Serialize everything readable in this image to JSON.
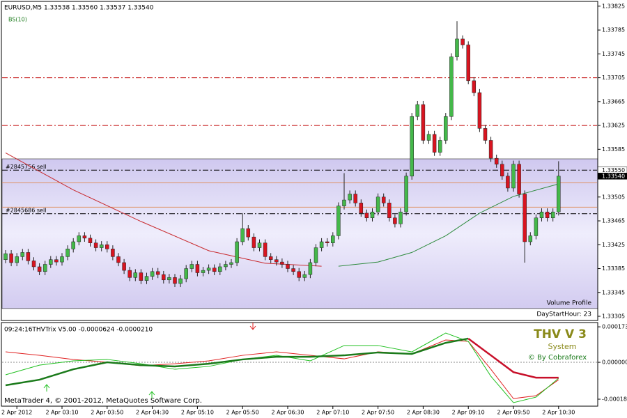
{
  "chart_data": [
    {
      "type": "candlestick",
      "title": "EURUSD,M5 1.33538 1.33560 1.33537 1.33540",
      "indicator_label": "BS(10)",
      "categories": [
        null,
        null,
        "2 Apr 2012",
        null,
        null,
        null,
        null,
        null,
        null,
        null,
        "2 Apr 03:10",
        null,
        null,
        null,
        null,
        null,
        null,
        null,
        "2 Apr 03:50",
        null,
        null,
        null,
        null,
        null,
        null,
        null,
        "2 Apr 04:30",
        null,
        null,
        null,
        null,
        null,
        null,
        null,
        "2 Apr 05:10",
        null,
        null,
        null,
        null,
        null,
        null,
        null,
        "2 Apr 05:50",
        null,
        null,
        null,
        null,
        null,
        null,
        null,
        "2 Apr 06:30",
        null,
        null,
        null,
        null,
        null,
        null,
        null,
        "2 Apr 07:10",
        null,
        null,
        null,
        null,
        null,
        null,
        null,
        "2 Apr 07:50",
        null,
        null,
        null,
        null,
        null,
        null,
        null,
        "2 Apr 08:30",
        null,
        null,
        null,
        null,
        null,
        null,
        null,
        "2 Apr 09:10",
        null,
        null,
        null,
        null,
        null,
        null,
        null,
        "2 Apr 09:50",
        null,
        null,
        null,
        null,
        null,
        null,
        null,
        "2 Apr 10:30"
      ],
      "open": [
        1.334,
        1.3341,
        1.33395,
        1.33405,
        1.33412,
        1.33398,
        1.33388,
        1.3338,
        1.33392,
        1.334,
        1.33396,
        1.33405,
        1.33418,
        1.3343,
        1.3344,
        1.33436,
        1.33428,
        1.3342,
        1.33425,
        1.33418,
        1.33405,
        1.33395,
        1.33382,
        1.3337,
        1.33378,
        1.33365,
        1.33372,
        1.3338,
        1.33375,
        1.33366,
        1.3337,
        1.3336,
        1.33368,
        1.33385,
        1.33392,
        1.33378,
        1.33382,
        1.33386,
        1.3338,
        1.33388,
        1.33392,
        1.33395,
        1.3343,
        1.33452,
        1.33438,
        1.3342,
        1.33428,
        1.33405,
        1.334,
        1.33396,
        1.33392,
        1.33385,
        1.3338,
        1.3337,
        1.33375,
        1.33395,
        1.3342,
        1.3343,
        1.33428,
        1.3344,
        1.3349,
        1.335,
        1.3351,
        1.33495,
        1.33478,
        1.3347,
        1.3348,
        1.33505,
        1.33495,
        1.3347,
        1.3346,
        1.3348,
        1.3354,
        1.3364,
        1.3366,
        1.336,
        1.3361,
        1.3358,
        1.336,
        1.3364,
        1.3374,
        1.3377,
        1.3376,
        1.337,
        1.3368,
        1.3362,
        1.336,
        1.3357,
        1.3356,
        1.3354,
        1.3352,
        1.3356,
        1.3351,
        1.3343,
        1.3344,
        1.3347,
        1.3348,
        1.3347,
        1.3348
      ],
      "high": [
        1.33416,
        1.33416,
        1.33411,
        1.33418,
        1.33418,
        1.33404,
        1.33394,
        1.33398,
        1.33406,
        1.33406,
        1.33411,
        1.33424,
        1.33436,
        1.33446,
        1.33446,
        1.33442,
        1.33434,
        1.33431,
        1.33431,
        1.33424,
        1.33411,
        1.33401,
        1.33388,
        1.33384,
        1.33384,
        1.33378,
        1.33386,
        1.33386,
        1.33381,
        1.33376,
        1.33376,
        1.33374,
        1.33391,
        1.33398,
        1.33398,
        1.33388,
        1.33392,
        1.33392,
        1.33394,
        1.33398,
        1.33401,
        1.33436,
        1.33478,
        1.33458,
        1.33444,
        1.33434,
        1.33434,
        1.33411,
        1.33406,
        1.33402,
        1.33398,
        1.33391,
        1.33386,
        1.33381,
        1.33401,
        1.33426,
        1.33436,
        1.33436,
        1.33446,
        1.33496,
        1.33545,
        1.33516,
        1.33516,
        1.33501,
        1.33484,
        1.33486,
        1.33511,
        1.33511,
        1.33501,
        1.33476,
        1.33486,
        1.33546,
        1.33646,
        1.33666,
        1.33666,
        1.33616,
        1.33616,
        1.33606,
        1.33646,
        1.33746,
        1.338,
        1.33776,
        1.33766,
        1.33706,
        1.33686,
        1.33626,
        1.33606,
        1.33576,
        1.33566,
        1.33546,
        1.33566,
        1.33566,
        1.33516,
        1.33446,
        1.33476,
        1.33486,
        1.33486,
        1.33486,
        1.33565
      ],
      "low": [
        1.33394,
        1.33389,
        1.33389,
        1.33399,
        1.33392,
        1.33382,
        1.33374,
        1.33374,
        1.33386,
        1.3339,
        1.3339,
        1.33399,
        1.33412,
        1.33424,
        1.3343,
        1.33422,
        1.33414,
        1.33414,
        1.33412,
        1.33399,
        1.33389,
        1.33376,
        1.33364,
        1.33364,
        1.33359,
        1.33359,
        1.33366,
        1.33369,
        1.3336,
        1.3336,
        1.33354,
        1.33354,
        1.33362,
        1.33379,
        1.33372,
        1.33372,
        1.33376,
        1.33374,
        1.33374,
        1.33382,
        1.33386,
        1.33389,
        1.33424,
        1.33432,
        1.33414,
        1.33414,
        1.33399,
        1.33394,
        1.3339,
        1.33386,
        1.33379,
        1.33374,
        1.33364,
        1.33364,
        1.33369,
        1.33389,
        1.33414,
        1.33422,
        1.33422,
        1.33434,
        1.33484,
        1.33494,
        1.33489,
        1.33472,
        1.33464,
        1.33464,
        1.33474,
        1.33489,
        1.33464,
        1.33454,
        1.33454,
        1.33474,
        1.33534,
        1.33634,
        1.33594,
        1.33594,
        1.33574,
        1.33574,
        1.33594,
        1.33634,
        1.33734,
        1.33754,
        1.33694,
        1.33674,
        1.33614,
        1.33594,
        1.33564,
        1.33554,
        1.33534,
        1.33514,
        1.33514,
        1.33504,
        1.33395,
        1.33424,
        1.33434,
        1.33464,
        1.33464,
        1.33464,
        1.33474
      ],
      "close": [
        1.3341,
        1.33395,
        1.33405,
        1.33412,
        1.33398,
        1.33388,
        1.3338,
        1.33392,
        1.334,
        1.33396,
        1.33405,
        1.33418,
        1.3343,
        1.3344,
        1.33436,
        1.33428,
        1.3342,
        1.33425,
        1.33418,
        1.33405,
        1.33395,
        1.33382,
        1.3337,
        1.33378,
        1.33365,
        1.33372,
        1.3338,
        1.33375,
        1.33366,
        1.3337,
        1.3336,
        1.33368,
        1.33385,
        1.33392,
        1.33378,
        1.33382,
        1.33386,
        1.3338,
        1.33388,
        1.33392,
        1.33395,
        1.3343,
        1.33452,
        1.33438,
        1.3342,
        1.33428,
        1.33405,
        1.334,
        1.33396,
        1.33392,
        1.33385,
        1.3338,
        1.3337,
        1.33375,
        1.33395,
        1.3342,
        1.3343,
        1.33428,
        1.3344,
        1.3349,
        1.335,
        1.3351,
        1.33495,
        1.33478,
        1.3347,
        1.3348,
        1.33505,
        1.33495,
        1.3347,
        1.3346,
        1.3348,
        1.3354,
        1.3364,
        1.3366,
        1.336,
        1.3361,
        1.3358,
        1.336,
        1.3364,
        1.3374,
        1.3377,
        1.3376,
        1.337,
        1.3368,
        1.3362,
        1.336,
        1.3357,
        1.3356,
        1.3354,
        1.3352,
        1.3356,
        1.3351,
        1.3343,
        1.3344,
        1.3347,
        1.3348,
        1.3347,
        1.3348,
        1.3354
      ],
      "up_color": "#44b84a",
      "down_color": "#d81420",
      "ylim": [
        1.33298,
        1.33833
      ],
      "yticks": [
        1.33825,
        1.33785,
        1.33745,
        1.33705,
        1.33665,
        1.33625,
        1.33585,
        1.33505,
        1.33465,
        1.33425,
        1.33385,
        1.33345,
        1.33305
      ],
      "levels": [
        {
          "value": 1.33705,
          "color": "#c00000",
          "style": "dash-dot"
        },
        {
          "value": 1.33625,
          "color": "#c00000",
          "style": "dash-dot"
        },
        {
          "value": 1.3355,
          "color": "#000000",
          "style": "dash-dot",
          "label": "#2845756 sell"
        },
        {
          "value": 1.33477,
          "color": "#000000",
          "style": "dash-dot",
          "label": "#2845686 sell"
        },
        {
          "value": 1.33529,
          "color": "#e09060",
          "style": "solid"
        },
        {
          "value": 1.33488,
          "color": "#e09060",
          "style": "solid"
        }
      ],
      "moving_averages": [
        {
          "color": "#c8282c",
          "x": [
            0,
            12,
            24,
            36,
            46,
            56
          ],
          "values": [
            1.33579,
            1.33517,
            1.33464,
            1.33415,
            1.33394,
            1.33389
          ]
        },
        {
          "color": "#2e8b3e",
          "x": [
            59,
            66,
            72,
            78,
            84,
            90,
            98
          ],
          "values": [
            1.33389,
            1.33396,
            1.33412,
            1.3344,
            1.33478,
            1.33506,
            1.33527
          ]
        }
      ],
      "volume_profile": {
        "label": "Volume Profile",
        "note": "DayStartHour: 23",
        "range": [
          1.33318,
          1.33569
        ]
      },
      "price_labels": [
        {
          "value": 1.3355,
          "label": "1.33550"
        },
        {
          "value": 1.3354,
          "label": "1.33540"
        }
      ]
    },
    {
      "type": "line",
      "title": "09:24:16THVTrix V5.00 -0.0000624 -0.0000210",
      "annotations": [
        "THV V 3",
        "System",
        "© By Cobraforex"
      ],
      "x": [
        0,
        6,
        12,
        18,
        24,
        30,
        36,
        42,
        48,
        54,
        60,
        66,
        72,
        78,
        82,
        86,
        90,
        94,
        98
      ],
      "series": [
        {
          "color": "#e02020",
          "width": 1,
          "values": [
            5.1e-05,
            3.4e-05,
            1.4e-05,
            0,
            -1.7e-05,
            -7e-06,
            7e-06,
            3.4e-05,
            5.1e-05,
            3.4e-05,
            1.7e-05,
            5.1e-05,
            4.1e-05,
            0.000109,
            0.000102,
            -3.4e-05,
            -0.000177,
            -0.000163,
            -8.5e-05
          ]
        },
        {
          "color": "#20c020",
          "width": 1,
          "values": [
            -6.1e-05,
            -1.4e-05,
            7e-06,
            1.4e-05,
            -7e-06,
            -3.4e-05,
            -2e-05,
            1.4e-05,
            3.4e-05,
            7e-06,
            8.2e-05,
            8.2e-05,
            5.1e-05,
            0.000143,
            0.000102,
            -6.8e-05,
            -0.000197,
            -0.00017,
            -7.8e-05
          ]
        },
        {
          "color": "#1a7a1a",
          "width": 2.5,
          "values": [
            -0.000112,
            -8.5e-05,
            -3.4e-05,
            0,
            -1.4e-05,
            -2e-05,
            -7e-06,
            1.4e-05,
            2.7e-05,
            2.7e-05,
            3.4e-05,
            4.8e-05,
            4.1e-05,
            9.5e-05,
            0.000116,
            null,
            null,
            null,
            null
          ]
        },
        {
          "color": "#c8102a",
          "width": 2.5,
          "values": [
            null,
            null,
            null,
            null,
            null,
            null,
            null,
            null,
            null,
            null,
            null,
            null,
            null,
            null,
            0.000116,
            3.4e-05,
            -4.8e-05,
            -7.5e-05,
            -7.5e-05
          ]
        }
      ],
      "ylim": [
        -0.000214,
        0.000194
      ],
      "yticks": [
        0.0001732,
        {
          "value": 0,
          "label": "0.0000000"
        },
        -0.00018
      ]
    }
  ],
  "footer": "MetaTrader 4, © 2001-2012, MetaQuotes Software Corp."
}
